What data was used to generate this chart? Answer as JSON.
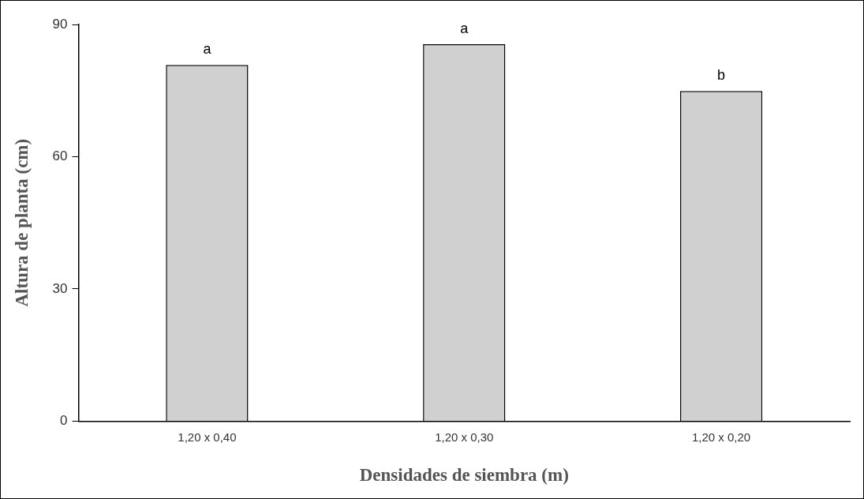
{
  "chart_data": {
    "type": "bar",
    "xlabel": "Densidades de siembra (m)",
    "ylabel": "Altura de planta (cm)",
    "categories": [
      "1,20 x 0,40",
      "1,20 x 0,30",
      "1,20 x 0,20"
    ],
    "values": [
      80.8,
      85.5,
      74.9
    ],
    "color": "#d0d0d0",
    "ylim": [
      0,
      90
    ],
    "yticks": [
      0,
      30,
      60,
      90
    ],
    "annotations": [
      {
        "text": "a",
        "x": "1,20 x 0,40",
        "y": 80.8
      },
      {
        "text": "a",
        "x": "1,20 x 0,30",
        "y": 85.5
      },
      {
        "text": "b",
        "x": "1,20 x 0,20",
        "y": 74.9
      }
    ]
  }
}
